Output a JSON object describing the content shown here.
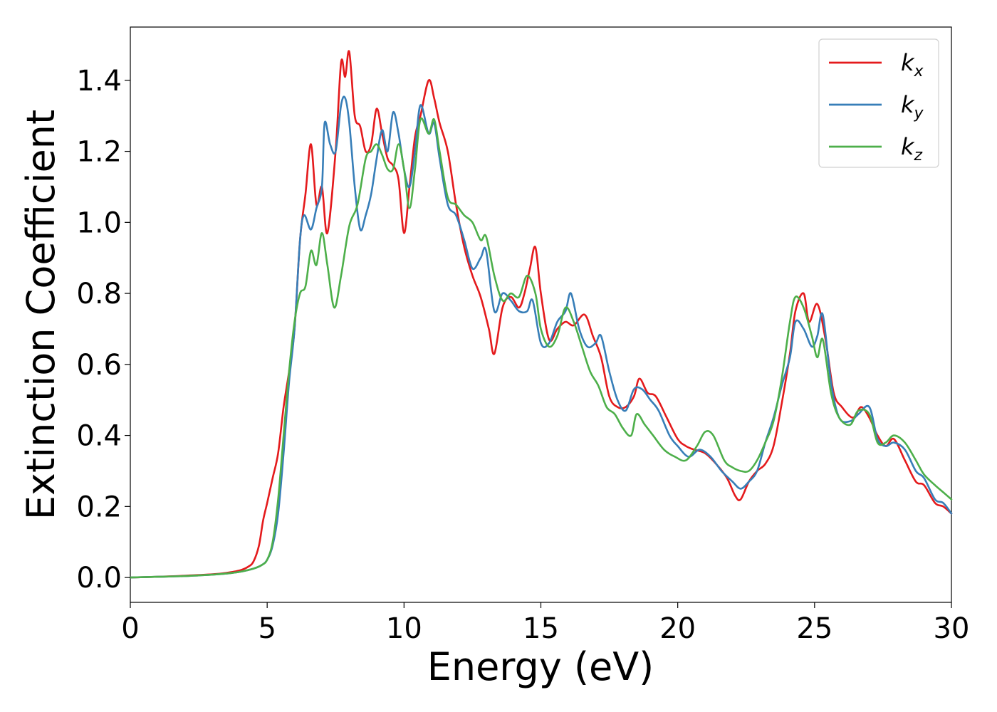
{
  "chart_data": {
    "type": "line",
    "xlabel": "Energy (eV)",
    "ylabel": "Extinction Coefficient",
    "xlim": [
      0,
      30
    ],
    "ylim": [
      -0.07,
      1.55
    ],
    "xticks": [
      0,
      5,
      10,
      15,
      20,
      25,
      30
    ],
    "xtick_labels": [
      "0",
      "5",
      "10",
      "15",
      "20",
      "25",
      "30"
    ],
    "yticks": [
      0.0,
      0.2,
      0.4,
      0.6,
      0.8,
      1.0,
      1.2,
      1.4
    ],
    "ytick_labels": [
      "0.0",
      "0.2",
      "0.4",
      "0.6",
      "0.8",
      "1.0",
      "1.2",
      "1.4"
    ],
    "grid": false,
    "legend_position": "top-right",
    "series": [
      {
        "name": "k",
        "subscript": "x",
        "color": "#e41a1c",
        "points": [
          [
            0,
            0
          ],
          [
            1,
            0.002
          ],
          [
            2,
            0.005
          ],
          [
            3,
            0.009
          ],
          [
            3.5,
            0.013
          ],
          [
            4,
            0.02
          ],
          [
            4.3,
            0.03
          ],
          [
            4.5,
            0.045
          ],
          [
            4.7,
            0.09
          ],
          [
            4.85,
            0.16
          ],
          [
            5.0,
            0.21
          ],
          [
            5.2,
            0.28
          ],
          [
            5.4,
            0.35
          ],
          [
            5.6,
            0.48
          ],
          [
            5.8,
            0.58
          ],
          [
            6.0,
            0.7
          ],
          [
            6.2,
            0.95
          ],
          [
            6.4,
            1.08
          ],
          [
            6.6,
            1.22
          ],
          [
            6.8,
            1.05
          ],
          [
            7.0,
            1.1
          ],
          [
            7.2,
            0.97
          ],
          [
            7.5,
            1.2
          ],
          [
            7.7,
            1.45
          ],
          [
            7.85,
            1.41
          ],
          [
            8.0,
            1.48
          ],
          [
            8.2,
            1.3
          ],
          [
            8.4,
            1.27
          ],
          [
            8.6,
            1.2
          ],
          [
            8.8,
            1.22
          ],
          [
            9.0,
            1.32
          ],
          [
            9.2,
            1.25
          ],
          [
            9.4,
            1.18
          ],
          [
            9.6,
            1.16
          ],
          [
            9.8,
            1.12
          ],
          [
            10.0,
            0.97
          ],
          [
            10.2,
            1.1
          ],
          [
            10.4,
            1.24
          ],
          [
            10.6,
            1.3
          ],
          [
            10.9,
            1.4
          ],
          [
            11.1,
            1.35
          ],
          [
            11.3,
            1.28
          ],
          [
            11.6,
            1.2
          ],
          [
            11.9,
            1.05
          ],
          [
            12.2,
            0.93
          ],
          [
            12.5,
            0.85
          ],
          [
            12.8,
            0.79
          ],
          [
            13.1,
            0.7
          ],
          [
            13.3,
            0.63
          ],
          [
            13.6,
            0.76
          ],
          [
            13.9,
            0.79
          ],
          [
            14.2,
            0.76
          ],
          [
            14.4,
            0.8
          ],
          [
            14.6,
            0.87
          ],
          [
            14.8,
            0.93
          ],
          [
            15.0,
            0.8
          ],
          [
            15.3,
            0.67
          ],
          [
            15.6,
            0.7
          ],
          [
            15.9,
            0.72
          ],
          [
            16.2,
            0.71
          ],
          [
            16.6,
            0.74
          ],
          [
            16.9,
            0.68
          ],
          [
            17.2,
            0.62
          ],
          [
            17.5,
            0.51
          ],
          [
            17.8,
            0.48
          ],
          [
            18.1,
            0.48
          ],
          [
            18.4,
            0.51
          ],
          [
            18.6,
            0.56
          ],
          [
            18.9,
            0.52
          ],
          [
            19.2,
            0.51
          ],
          [
            19.6,
            0.45
          ],
          [
            20.0,
            0.39
          ],
          [
            20.3,
            0.37
          ],
          [
            20.6,
            0.36
          ],
          [
            21.0,
            0.35
          ],
          [
            21.4,
            0.32
          ],
          [
            21.8,
            0.28
          ],
          [
            22.1,
            0.23
          ],
          [
            22.3,
            0.22
          ],
          [
            22.6,
            0.27
          ],
          [
            22.9,
            0.3
          ],
          [
            23.2,
            0.32
          ],
          [
            23.5,
            0.37
          ],
          [
            23.8,
            0.49
          ],
          [
            24.1,
            0.63
          ],
          [
            24.3,
            0.75
          ],
          [
            24.6,
            0.8
          ],
          [
            24.8,
            0.72
          ],
          [
            25.1,
            0.77
          ],
          [
            25.4,
            0.67
          ],
          [
            25.7,
            0.52
          ],
          [
            26.0,
            0.48
          ],
          [
            26.4,
            0.45
          ],
          [
            26.7,
            0.48
          ],
          [
            27.0,
            0.45
          ],
          [
            27.3,
            0.4
          ],
          [
            27.6,
            0.37
          ],
          [
            27.9,
            0.39
          ],
          [
            28.3,
            0.33
          ],
          [
            28.7,
            0.27
          ],
          [
            29.0,
            0.26
          ],
          [
            29.4,
            0.21
          ],
          [
            29.7,
            0.2
          ],
          [
            30.0,
            0.18
          ]
        ]
      },
      {
        "name": "k",
        "subscript": "y",
        "color": "#377eb8",
        "points": [
          [
            0,
            0
          ],
          [
            1,
            0.002
          ],
          [
            2,
            0.004
          ],
          [
            3,
            0.008
          ],
          [
            3.5,
            0.011
          ],
          [
            4,
            0.016
          ],
          [
            4.5,
            0.025
          ],
          [
            4.8,
            0.035
          ],
          [
            5.0,
            0.05
          ],
          [
            5.2,
            0.09
          ],
          [
            5.4,
            0.18
          ],
          [
            5.6,
            0.35
          ],
          [
            5.8,
            0.55
          ],
          [
            6.0,
            0.7
          ],
          [
            6.2,
            0.95
          ],
          [
            6.35,
            1.02
          ],
          [
            6.6,
            0.98
          ],
          [
            6.8,
            1.04
          ],
          [
            7.0,
            1.1
          ],
          [
            7.1,
            1.28
          ],
          [
            7.3,
            1.22
          ],
          [
            7.5,
            1.2
          ],
          [
            7.7,
            1.33
          ],
          [
            7.85,
            1.35
          ],
          [
            8.0,
            1.28
          ],
          [
            8.2,
            1.1
          ],
          [
            8.4,
            0.98
          ],
          [
            8.6,
            1.02
          ],
          [
            8.8,
            1.08
          ],
          [
            9.0,
            1.18
          ],
          [
            9.2,
            1.26
          ],
          [
            9.4,
            1.2
          ],
          [
            9.6,
            1.31
          ],
          [
            9.8,
            1.25
          ],
          [
            10.0,
            1.15
          ],
          [
            10.2,
            1.1
          ],
          [
            10.4,
            1.2
          ],
          [
            10.6,
            1.33
          ],
          [
            10.9,
            1.25
          ],
          [
            11.1,
            1.28
          ],
          [
            11.3,
            1.18
          ],
          [
            11.6,
            1.05
          ],
          [
            11.9,
            1.02
          ],
          [
            12.2,
            0.95
          ],
          [
            12.5,
            0.87
          ],
          [
            12.8,
            0.9
          ],
          [
            13.0,
            0.92
          ],
          [
            13.3,
            0.75
          ],
          [
            13.6,
            0.8
          ],
          [
            13.9,
            0.78
          ],
          [
            14.2,
            0.75
          ],
          [
            14.5,
            0.75
          ],
          [
            14.7,
            0.78
          ],
          [
            15.0,
            0.66
          ],
          [
            15.3,
            0.66
          ],
          [
            15.6,
            0.72
          ],
          [
            15.9,
            0.75
          ],
          [
            16.1,
            0.8
          ],
          [
            16.4,
            0.7
          ],
          [
            16.7,
            0.65
          ],
          [
            17.0,
            0.66
          ],
          [
            17.2,
            0.68
          ],
          [
            17.5,
            0.58
          ],
          [
            17.8,
            0.5
          ],
          [
            18.1,
            0.47
          ],
          [
            18.4,
            0.53
          ],
          [
            18.7,
            0.53
          ],
          [
            19.0,
            0.5
          ],
          [
            19.3,
            0.47
          ],
          [
            19.7,
            0.4
          ],
          [
            20.0,
            0.37
          ],
          [
            20.4,
            0.34
          ],
          [
            20.8,
            0.36
          ],
          [
            21.2,
            0.34
          ],
          [
            21.6,
            0.3
          ],
          [
            22.0,
            0.27
          ],
          [
            22.3,
            0.25
          ],
          [
            22.6,
            0.27
          ],
          [
            22.9,
            0.3
          ],
          [
            23.2,
            0.38
          ],
          [
            23.5,
            0.45
          ],
          [
            23.8,
            0.54
          ],
          [
            24.1,
            0.62
          ],
          [
            24.3,
            0.72
          ],
          [
            24.6,
            0.7
          ],
          [
            24.9,
            0.65
          ],
          [
            25.1,
            0.68
          ],
          [
            25.3,
            0.74
          ],
          [
            25.6,
            0.55
          ],
          [
            25.9,
            0.45
          ],
          [
            26.3,
            0.44
          ],
          [
            26.6,
            0.46
          ],
          [
            27.0,
            0.48
          ],
          [
            27.3,
            0.39
          ],
          [
            27.6,
            0.37
          ],
          [
            27.9,
            0.38
          ],
          [
            28.3,
            0.36
          ],
          [
            28.7,
            0.3
          ],
          [
            29.0,
            0.28
          ],
          [
            29.4,
            0.22
          ],
          [
            29.7,
            0.21
          ],
          [
            30.0,
            0.18
          ]
        ]
      },
      {
        "name": "k",
        "subscript": "z",
        "color": "#4daf4a",
        "points": [
          [
            0,
            0
          ],
          [
            1,
            0.002
          ],
          [
            2,
            0.004
          ],
          [
            3,
            0.008
          ],
          [
            3.5,
            0.011
          ],
          [
            4,
            0.016
          ],
          [
            4.5,
            0.025
          ],
          [
            4.8,
            0.035
          ],
          [
            5.0,
            0.05
          ],
          [
            5.2,
            0.1
          ],
          [
            5.4,
            0.22
          ],
          [
            5.6,
            0.4
          ],
          [
            5.8,
            0.58
          ],
          [
            6.0,
            0.72
          ],
          [
            6.2,
            0.8
          ],
          [
            6.4,
            0.82
          ],
          [
            6.6,
            0.92
          ],
          [
            6.8,
            0.88
          ],
          [
            7.0,
            0.97
          ],
          [
            7.2,
            0.88
          ],
          [
            7.45,
            0.76
          ],
          [
            7.7,
            0.85
          ],
          [
            8.0,
            0.99
          ],
          [
            8.3,
            1.05
          ],
          [
            8.6,
            1.18
          ],
          [
            8.8,
            1.2
          ],
          [
            9.0,
            1.22
          ],
          [
            9.2,
            1.19
          ],
          [
            9.4,
            1.15
          ],
          [
            9.6,
            1.15
          ],
          [
            9.8,
            1.22
          ],
          [
            10.0,
            1.15
          ],
          [
            10.2,
            1.04
          ],
          [
            10.4,
            1.15
          ],
          [
            10.6,
            1.29
          ],
          [
            10.9,
            1.25
          ],
          [
            11.1,
            1.29
          ],
          [
            11.3,
            1.2
          ],
          [
            11.6,
            1.07
          ],
          [
            11.9,
            1.05
          ],
          [
            12.2,
            1.02
          ],
          [
            12.5,
            1.0
          ],
          [
            12.8,
            0.95
          ],
          [
            13.0,
            0.96
          ],
          [
            13.3,
            0.85
          ],
          [
            13.6,
            0.78
          ],
          [
            13.9,
            0.8
          ],
          [
            14.2,
            0.79
          ],
          [
            14.5,
            0.85
          ],
          [
            14.8,
            0.8
          ],
          [
            15.0,
            0.7
          ],
          [
            15.3,
            0.65
          ],
          [
            15.6,
            0.68
          ],
          [
            15.9,
            0.76
          ],
          [
            16.2,
            0.72
          ],
          [
            16.5,
            0.65
          ],
          [
            16.8,
            0.58
          ],
          [
            17.1,
            0.54
          ],
          [
            17.4,
            0.48
          ],
          [
            17.7,
            0.46
          ],
          [
            18.0,
            0.42
          ],
          [
            18.3,
            0.4
          ],
          [
            18.5,
            0.46
          ],
          [
            18.8,
            0.43
          ],
          [
            19.1,
            0.4
          ],
          [
            19.5,
            0.36
          ],
          [
            19.9,
            0.34
          ],
          [
            20.3,
            0.33
          ],
          [
            20.7,
            0.37
          ],
          [
            21.0,
            0.41
          ],
          [
            21.3,
            0.4
          ],
          [
            21.7,
            0.33
          ],
          [
            22.0,
            0.31
          ],
          [
            22.3,
            0.3
          ],
          [
            22.6,
            0.3
          ],
          [
            22.9,
            0.33
          ],
          [
            23.2,
            0.38
          ],
          [
            23.5,
            0.44
          ],
          [
            23.8,
            0.56
          ],
          [
            24.1,
            0.72
          ],
          [
            24.3,
            0.79
          ],
          [
            24.6,
            0.76
          ],
          [
            24.9,
            0.68
          ],
          [
            25.1,
            0.62
          ],
          [
            25.3,
            0.67
          ],
          [
            25.6,
            0.52
          ],
          [
            25.9,
            0.45
          ],
          [
            26.3,
            0.43
          ],
          [
            26.6,
            0.47
          ],
          [
            27.0,
            0.46
          ],
          [
            27.3,
            0.38
          ],
          [
            27.6,
            0.38
          ],
          [
            27.9,
            0.4
          ],
          [
            28.3,
            0.38
          ],
          [
            28.7,
            0.33
          ],
          [
            29.0,
            0.29
          ],
          [
            29.4,
            0.26
          ],
          [
            29.7,
            0.24
          ],
          [
            30.0,
            0.22
          ]
        ]
      }
    ]
  }
}
